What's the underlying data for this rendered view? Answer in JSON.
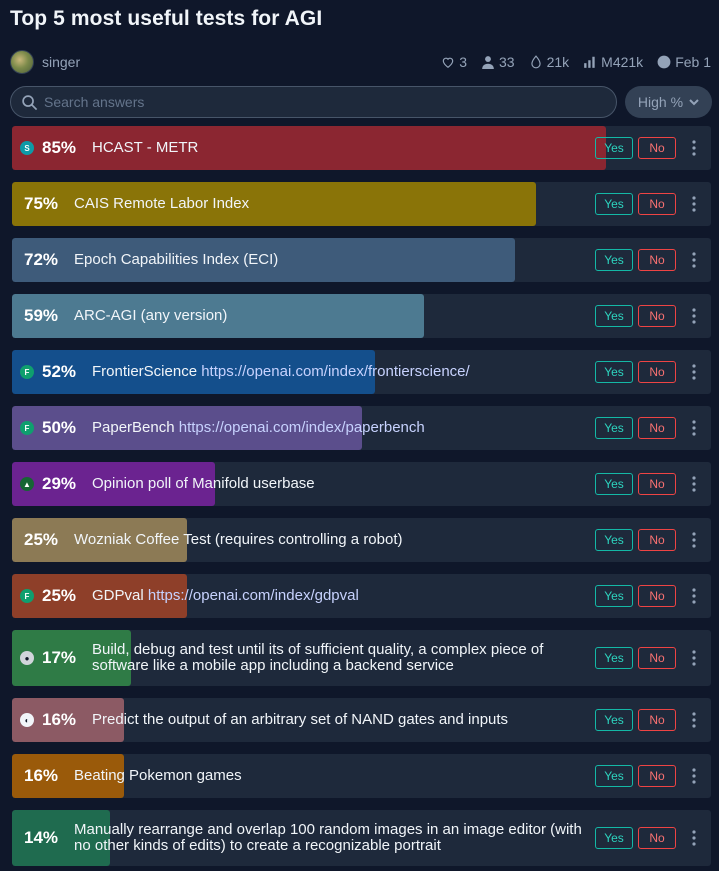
{
  "title": "Top 5 most useful tests for AGI",
  "author": {
    "name": "singer"
  },
  "stats": {
    "likes": "3",
    "traders": "33",
    "liquidity": "21k",
    "volume": "M421k",
    "date": "Feb 1"
  },
  "search": {
    "placeholder": "Search answers",
    "value": ""
  },
  "sort": {
    "label": "High %"
  },
  "answers": [
    {
      "pct": "85%",
      "value": 85,
      "label": "HCAST - METR",
      "link": "",
      "creator": "S",
      "creator_color": "#0e9aa7",
      "bar_color": "#8b2631",
      "yes": "Yes",
      "no": "No"
    },
    {
      "pct": "75%",
      "value": 75,
      "label": "CAIS Remote Labor Index",
      "link": "",
      "creator": "",
      "creator_color": "",
      "bar_color": "#8a7408",
      "yes": "Yes",
      "no": "No"
    },
    {
      "pct": "72%",
      "value": 72,
      "label": "Epoch Capabilities Index (ECI)",
      "link": "",
      "creator": "",
      "creator_color": "",
      "bar_color": "#3e5b7a",
      "yes": "Yes",
      "no": "No"
    },
    {
      "pct": "59%",
      "value": 59,
      "label": "ARC-AGI (any version)",
      "link": "",
      "creator": "",
      "creator_color": "",
      "bar_color": "#4d7a91",
      "yes": "Yes",
      "no": "No"
    },
    {
      "pct": "52%",
      "value": 52,
      "label": "FrontierScience ",
      "link": "https://openai.com/index/frontierscience/",
      "creator": "F",
      "creator_color": "#0f9f6e",
      "bar_color": "#144f8c",
      "yes": "Yes",
      "no": "No"
    },
    {
      "pct": "50%",
      "value": 50,
      "label": "PaperBench ",
      "link": "https://openai.com/index/paperbench",
      "creator": "F",
      "creator_color": "#0f9f6e",
      "bar_color": "#5b4e8c",
      "yes": "Yes",
      "no": "No"
    },
    {
      "pct": "29%",
      "value": 29,
      "label": "Opinion poll of Manifold userbase",
      "link": "",
      "creator": "▲",
      "creator_color": "#166534",
      "bar_color": "#6b2390",
      "yes": "Yes",
      "no": "No"
    },
    {
      "pct": "25%",
      "value": 25,
      "label": "Wozniak Coffee Test (requires controlling a robot)",
      "link": "",
      "creator": "",
      "creator_color": "",
      "bar_color": "#8c7a55",
      "yes": "Yes",
      "no": "No"
    },
    {
      "pct": "25%",
      "value": 25,
      "label": "GDPval ",
      "link": "https://openai.com/index/gdpval",
      "creator": "F",
      "creator_color": "#0f9f6e",
      "bar_color": "#8e3f29",
      "yes": "Yes",
      "no": "No"
    },
    {
      "pct": "17%",
      "value": 17,
      "label": "Build, debug and test until its of sufficient quality, a complex piece of software like a mobile app including a backend service",
      "link": "",
      "creator": "●",
      "creator_color": "#d1d5db",
      "bar_color": "#2f7b46",
      "yes": "Yes",
      "no": "No"
    },
    {
      "pct": "16%",
      "value": 16,
      "label": "Predict the output of an arbitrary set of NAND gates and inputs",
      "link": "",
      "creator": "◐",
      "creator_color": "#f1f5f9",
      "bar_color": "#8c5a64",
      "yes": "Yes",
      "no": "No"
    },
    {
      "pct": "16%",
      "value": 16,
      "label": "Beating Pokemon games",
      "link": "",
      "creator": "",
      "creator_color": "",
      "bar_color": "#9a5a0a",
      "yes": "Yes",
      "no": "No"
    },
    {
      "pct": "14%",
      "value": 14,
      "label": "Manually rearrange and overlap 100 random images in an image editor (with no other kinds of edits) to create a recognizable portrait",
      "link": "",
      "creator": "",
      "creator_color": "",
      "bar_color": "#1f6b4f",
      "yes": "Yes",
      "no": "No"
    }
  ]
}
